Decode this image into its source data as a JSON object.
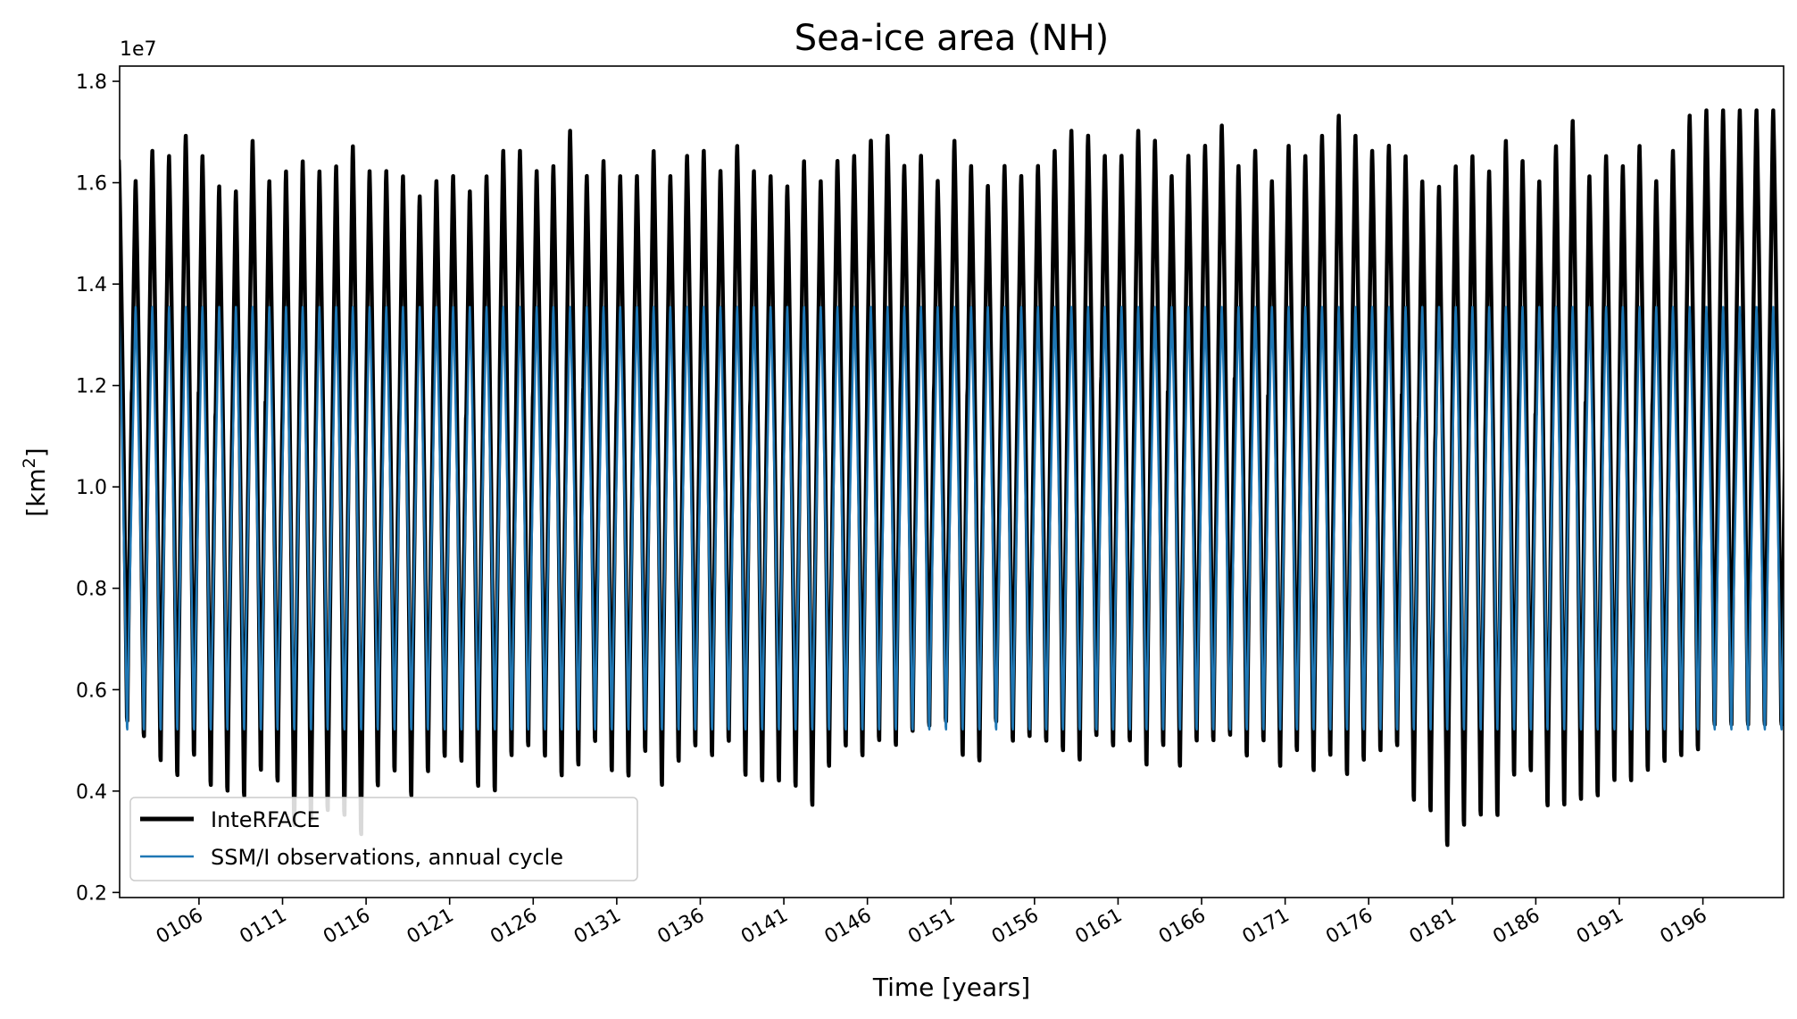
{
  "chart_data": {
    "type": "line",
    "title": "Sea-ice area (NH)",
    "xlabel": "Time [years]",
    "ylabel_base": "[km",
    "ylabel_sup": "2",
    "ylabel_close": "]",
    "y_offset_label": "1e7",
    "xlim": [
      101.25,
      200.83
    ],
    "ylim": [
      0.19,
      1.83
    ],
    "y_ticks": [
      0.2,
      0.4,
      0.6,
      0.8,
      1.0,
      1.2,
      1.4,
      1.6,
      1.8
    ],
    "y_tick_labels": [
      "0.2",
      "0.4",
      "0.6",
      "0.8",
      "1.0",
      "1.2",
      "1.4",
      "1.6",
      "1.8"
    ],
    "x_ticks": [
      106,
      111,
      116,
      121,
      126,
      131,
      136,
      141,
      146,
      151,
      156,
      161,
      166,
      171,
      176,
      181,
      186,
      191,
      196
    ],
    "x_tick_labels": [
      "0106",
      "0111",
      "0116",
      "0121",
      "0126",
      "0131",
      "0136",
      "0141",
      "0146",
      "0151",
      "0156",
      "0161",
      "0166",
      "0171",
      "0176",
      "0181",
      "0186",
      "0191",
      "0196"
    ],
    "grid": false,
    "legend_position": "lower-left",
    "series": [
      {
        "name": "InteRFACE",
        "color": "#000000",
        "line_width": 4.5,
        "annual_max": [
          1.65,
          1.61,
          1.67,
          1.66,
          1.7,
          1.66,
          1.6,
          1.59,
          1.69,
          1.61,
          1.63,
          1.65,
          1.63,
          1.64,
          1.68,
          1.63,
          1.63,
          1.62,
          1.58,
          1.61,
          1.62,
          1.59,
          1.62,
          1.67,
          1.67,
          1.63,
          1.64,
          1.71,
          1.62,
          1.65,
          1.62,
          1.62,
          1.67,
          1.62,
          1.66,
          1.67,
          1.63,
          1.68,
          1.63,
          1.62,
          1.6,
          1.65,
          1.61,
          1.65,
          1.66,
          1.69,
          1.7,
          1.64,
          1.66,
          1.61,
          1.69,
          1.64,
          1.6,
          1.64,
          1.62,
          1.64,
          1.67,
          1.71,
          1.7,
          1.66,
          1.66,
          1.71,
          1.69,
          1.62,
          1.66,
          1.68,
          1.72,
          1.64,
          1.67,
          1.61,
          1.68,
          1.66,
          1.7,
          1.74,
          1.7,
          1.67,
          1.68,
          1.66,
          1.61,
          1.6,
          1.64,
          1.66,
          1.63,
          1.69,
          1.65,
          1.61,
          1.68,
          1.73,
          1.62,
          1.66,
          1.64,
          1.68,
          1.61,
          1.67,
          1.74,
          1.75
        ],
        "annual_min": [
          0.51,
          0.48,
          0.43,
          0.4,
          0.44,
          0.38,
          0.37,
          0.36,
          0.41,
          0.39,
          0.3,
          0.31,
          0.33,
          0.32,
          0.28,
          0.38,
          0.41,
          0.36,
          0.41,
          0.44,
          0.43,
          0.38,
          0.37,
          0.44,
          0.46,
          0.44,
          0.4,
          0.42,
          0.47,
          0.41,
          0.4,
          0.45,
          0.38,
          0.43,
          0.46,
          0.44,
          0.47,
          0.4,
          0.39,
          0.39,
          0.38,
          0.34,
          0.42,
          0.46,
          0.44,
          0.47,
          0.46,
          0.49,
          0.5,
          0.51,
          0.44,
          0.43,
          0.51,
          0.47,
          0.48,
          0.47,
          0.45,
          0.43,
          0.48,
          0.46,
          0.47,
          0.42,
          0.46,
          0.42,
          0.47,
          0.47,
          0.48,
          0.44,
          0.47,
          0.42,
          0.45,
          0.41,
          0.44,
          0.4,
          0.43,
          0.45,
          0.46,
          0.35,
          0.33,
          0.26,
          0.3,
          0.32,
          0.32,
          0.4,
          0.41,
          0.34,
          0.34,
          0.35,
          0.36,
          0.39,
          0.39,
          0.41,
          0.43,
          0.44,
          0.45,
          0.5
        ]
      },
      {
        "name": "SSM/I observations, annual cycle",
        "color": "#1f77b4",
        "line_width": 2.5,
        "annual_max": 1.36,
        "annual_min": 0.5
      }
    ]
  }
}
